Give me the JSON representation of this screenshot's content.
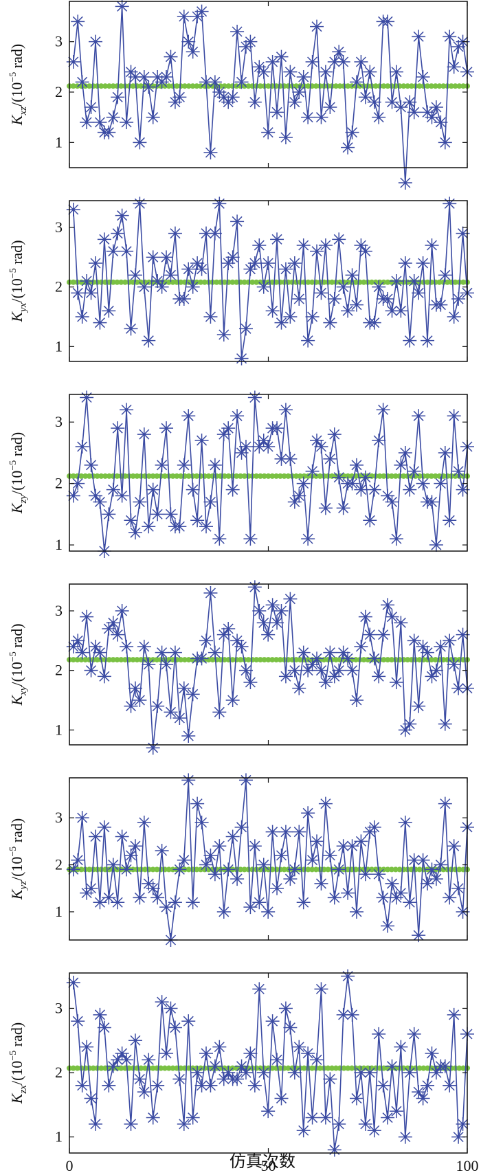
{
  "figure": {
    "xlabel": "仿真次数"
  },
  "colors": {
    "series": "#3b4ba3",
    "mean": "#7ac143",
    "axes": "#111111"
  },
  "chart_data": [
    {
      "type": "line",
      "ylabel": "K_xz/(10^-5 rad)",
      "ylabel_sym": "K",
      "ylabel_sub": "xz",
      "ylabel_unit_pre": "/(10",
      "ylabel_exp": "−5",
      "ylabel_unit_post": " rad)",
      "xlim": [
        0,
        100
      ],
      "ylim": [
        0.5,
        3.8
      ],
      "xticks": [
        0,
        50,
        100
      ],
      "yticks": [
        1,
        2,
        3
      ],
      "marker": "asterisk",
      "grid": false,
      "mean": 2.12,
      "values": [
        2.6,
        3.4,
        2.2,
        1.4,
        1.7,
        3.0,
        1.4,
        1.2,
        1.2,
        1.5,
        1.9,
        3.7,
        1.4,
        2.4,
        2.3,
        1.0,
        2.3,
        2.1,
        1.5,
        2.3,
        2.2,
        2.3,
        2.7,
        1.8,
        1.9,
        3.5,
        3.0,
        2.8,
        3.5,
        3.6,
        2.2,
        0.8,
        2.2,
        2.0,
        1.9,
        1.8,
        1.9,
        3.2,
        2.2,
        2.9,
        3.0,
        1.8,
        2.5,
        2.4,
        1.2,
        2.6,
        1.6,
        2.7,
        1.1,
        2.4,
        1.8,
        2.0,
        2.3,
        1.5,
        2.6,
        3.3,
        1.5,
        2.4,
        1.7,
        2.6,
        2.8,
        2.6,
        0.9,
        1.2,
        2.2,
        2.6,
        1.9,
        2.4,
        1.8,
        1.5,
        3.4,
        3.4,
        1.8,
        2.4,
        1.7,
        0.2,
        1.8,
        1.6,
        3.1,
        2.3,
        1.6,
        1.5,
        1.7,
        1.4,
        1.0,
        3.1,
        2.5,
        2.9,
        3.0,
        2.4
      ]
    },
    {
      "type": "line",
      "ylabel": "K_yx/(10^-5 rad)",
      "ylabel_sym": "K",
      "ylabel_sub": "yx",
      "ylabel_unit_pre": "/(10",
      "ylabel_exp": "−5",
      "ylabel_unit_post": " rad)",
      "xlim": [
        0,
        100
      ],
      "ylim": [
        0.75,
        3.45
      ],
      "xticks": [
        0,
        50,
        100
      ],
      "yticks": [
        1,
        2,
        3
      ],
      "marker": "asterisk",
      "grid": false,
      "mean": 2.08,
      "values": [
        3.3,
        1.9,
        1.5,
        2.1,
        1.9,
        2.4,
        1.4,
        2.8,
        1.6,
        2.6,
        2.9,
        3.2,
        2.6,
        1.3,
        2.2,
        3.4,
        2.0,
        1.1,
        2.5,
        2.1,
        2.0,
        2.5,
        2.2,
        2.9,
        1.8,
        1.8,
        2.3,
        2.0,
        2.4,
        2.3,
        2.9,
        1.5,
        2.9,
        3.4,
        1.2,
        2.4,
        2.5,
        3.1,
        0.8,
        1.3,
        2.3,
        2.4,
        2.7,
        2.0,
        2.4,
        1.6,
        2.8,
        1.4,
        2.3,
        1.5,
        2.4,
        1.8,
        2.7,
        1.1,
        1.5,
        2.6,
        1.9,
        2.7,
        1.4,
        1.8,
        2.8,
        2.0,
        1.6,
        2.2,
        1.7,
        2.7,
        2.6,
        1.4,
        1.4,
        2.0,
        1.8,
        1.8,
        1.6,
        2.1,
        1.6,
        2.4,
        1.1,
        2.1,
        1.9,
        2.4,
        1.1,
        2.7,
        1.7,
        1.7,
        2.2,
        3.4,
        1.5,
        1.8,
        2.9,
        1.9
      ]
    },
    {
      "type": "line",
      "ylabel": "K_zy/(10^-5 rad)",
      "ylabel_sym": "K",
      "ylabel_sub": "zy",
      "ylabel_unit_pre": "/(10",
      "ylabel_exp": "−5",
      "ylabel_unit_post": " rad)",
      "xlim": [
        0,
        100
      ],
      "ylim": [
        0.9,
        3.45
      ],
      "xticks": [
        0,
        50,
        100
      ],
      "yticks": [
        1,
        2,
        3
      ],
      "marker": "asterisk",
      "grid": false,
      "mean": 2.12,
      "values": [
        1.8,
        2.0,
        2.6,
        3.4,
        2.3,
        1.8,
        1.7,
        0.9,
        1.5,
        1.9,
        2.9,
        1.8,
        3.2,
        1.4,
        1.2,
        1.7,
        2.8,
        1.3,
        1.9,
        1.5,
        2.3,
        2.9,
        1.5,
        1.3,
        1.3,
        2.3,
        3.1,
        1.9,
        1.4,
        2.7,
        1.3,
        1.7,
        2.3,
        1.1,
        2.8,
        2.9,
        1.9,
        3.1,
        2.5,
        2.6,
        1.1,
        3.4,
        2.6,
        2.7,
        2.6,
        2.9,
        2.9,
        2.4,
        3.2,
        2.4,
        1.7,
        1.8,
        2.0,
        1.1,
        2.2,
        2.7,
        2.6,
        1.6,
        2.4,
        2.8,
        2.1,
        1.6,
        2.0,
        2.0,
        2.3,
        1.9,
        2.1,
        1.4,
        1.9,
        2.7,
        3.2,
        1.8,
        1.7,
        1.1,
        2.3,
        2.5,
        1.9,
        2.2,
        3.1,
        2.0,
        1.7,
        1.7,
        1.0,
        2.0,
        2.5,
        1.4,
        3.1,
        2.2,
        1.9,
        2.6
      ]
    },
    {
      "type": "line",
      "ylabel": "K_xy/(10^-5 rad)",
      "ylabel_sym": "K",
      "ylabel_sub": "xy",
      "ylabel_unit_pre": "/(10",
      "ylabel_exp": "−5",
      "ylabel_unit_post": " rad)",
      "xlim": [
        0,
        100
      ],
      "ylim": [
        0.75,
        3.45
      ],
      "xticks": [
        0,
        50,
        100
      ],
      "yticks": [
        1,
        2,
        3
      ],
      "marker": "asterisk",
      "grid": false,
      "mean": 2.18,
      "values": [
        2.4,
        2.5,
        2.3,
        2.9,
        2.0,
        2.4,
        2.3,
        1.9,
        2.7,
        2.8,
        2.6,
        3.0,
        2.4,
        1.4,
        1.7,
        1.5,
        2.4,
        2.1,
        0.7,
        1.4,
        2.3,
        2.1,
        1.3,
        2.3,
        1.2,
        1.7,
        0.9,
        1.6,
        2.2,
        2.2,
        2.5,
        3.3,
        2.3,
        1.3,
        2.6,
        2.7,
        1.5,
        2.5,
        2.4,
        2.0,
        1.8,
        3.4,
        3.0,
        2.8,
        2.6,
        3.1,
        2.8,
        3.0,
        1.9,
        3.2,
        2.0,
        1.7,
        2.3,
        2.0,
        2.1,
        2.2,
        2.0,
        1.8,
        2.3,
        1.9,
        2.0,
        2.3,
        2.2,
        2.0,
        1.5,
        2.4,
        2.9,
        2.6,
        2.2,
        1.9,
        2.6,
        3.1,
        2.9,
        1.8,
        2.8,
        1.0,
        1.1,
        2.5,
        1.4,
        2.4,
        2.3,
        1.9,
        2.0,
        2.4,
        1.1,
        2.5,
        2.1,
        1.7,
        2.6,
        1.7
      ]
    },
    {
      "type": "line",
      "ylabel": "K_yz/(10^-5 rad)",
      "ylabel_sym": "K",
      "ylabel_sub": "yz",
      "ylabel_unit_pre": "/(10",
      "ylabel_exp": "−5",
      "ylabel_unit_post": " rad)",
      "xlim": [
        0,
        100
      ],
      "ylim": [
        0.4,
        3.85
      ],
      "xticks": [
        0,
        50,
        100
      ],
      "yticks": [
        1,
        2,
        3
      ],
      "marker": "asterisk",
      "grid": false,
      "mean": 1.9,
      "values": [
        1.9,
        2.1,
        3.0,
        1.4,
        1.5,
        2.6,
        1.2,
        2.8,
        1.3,
        2.0,
        1.2,
        2.6,
        1.9,
        2.2,
        2.4,
        1.3,
        2.9,
        1.6,
        1.5,
        1.3,
        2.3,
        1.1,
        0.4,
        1.2,
        1.9,
        2.1,
        3.8,
        1.2,
        3.3,
        2.9,
        2.0,
        2.2,
        1.8,
        2.4,
        1.0,
        1.9,
        2.6,
        1.7,
        2.8,
        3.8,
        1.1,
        2.4,
        1.2,
        2.0,
        1.0,
        2.7,
        1.5,
        2.2,
        2.7,
        1.7,
        1.9,
        2.7,
        1.2,
        3.1,
        2.1,
        2.5,
        1.6,
        3.3,
        2.2,
        1.3,
        1.9,
        2.4,
        1.4,
        2.4,
        1.0,
        2.5,
        1.8,
        2.7,
        2.8,
        1.8,
        1.3,
        0.7,
        1.6,
        1.3,
        1.4,
        2.9,
        1.2,
        2.1,
        0.5,
        2.1,
        1.6,
        1.9,
        1.7,
        2.0,
        3.3,
        1.3,
        2.4,
        1.5,
        1.0,
        2.8
      ]
    },
    {
      "type": "line",
      "ylabel": "K_zx/(10^-5 rad)",
      "ylabel_sym": "K",
      "ylabel_sub": "zx",
      "ylabel_unit_pre": "/(10",
      "ylabel_exp": "−5",
      "ylabel_unit_post": " rad)",
      "xlim": [
        0,
        100
      ],
      "ylim": [
        0.75,
        3.55
      ],
      "xticks": [
        0,
        50,
        100
      ],
      "yticks": [
        1,
        2,
        3
      ],
      "marker": "asterisk",
      "grid": false,
      "mean": 2.07,
      "values": [
        3.4,
        2.8,
        1.8,
        2.4,
        1.6,
        1.2,
        2.9,
        2.7,
        1.8,
        2.1,
        2.2,
        2.3,
        2.2,
        1.2,
        2.5,
        1.9,
        1.7,
        2.2,
        1.3,
        1.8,
        3.1,
        2.3,
        3.0,
        2.7,
        1.9,
        1.2,
        2.8,
        1.3,
        2.0,
        1.8,
        2.3,
        1.8,
        2.1,
        2.4,
        1.9,
        2.0,
        1.9,
        1.9,
        2.1,
        2.0,
        2.3,
        1.8,
        3.3,
        2.0,
        1.4,
        2.8,
        2.2,
        1.6,
        3.0,
        2.7,
        2.0,
        2.4,
        1.1,
        2.3,
        1.3,
        2.2,
        3.3,
        1.3,
        1.9,
        0.8,
        1.2,
        2.9,
        3.5,
        2.9,
        1.6,
        2.0,
        1.2,
        2.0,
        1.1,
        2.6,
        1.8,
        1.3,
        2.1,
        1.4,
        2.4,
        1.0,
        2.0,
        2.6,
        1.7,
        1.6,
        1.8,
        2.3,
        2.0,
        2.1,
        2.1,
        1.8,
        2.9,
        1.0,
        1.2,
        2.6
      ]
    }
  ]
}
